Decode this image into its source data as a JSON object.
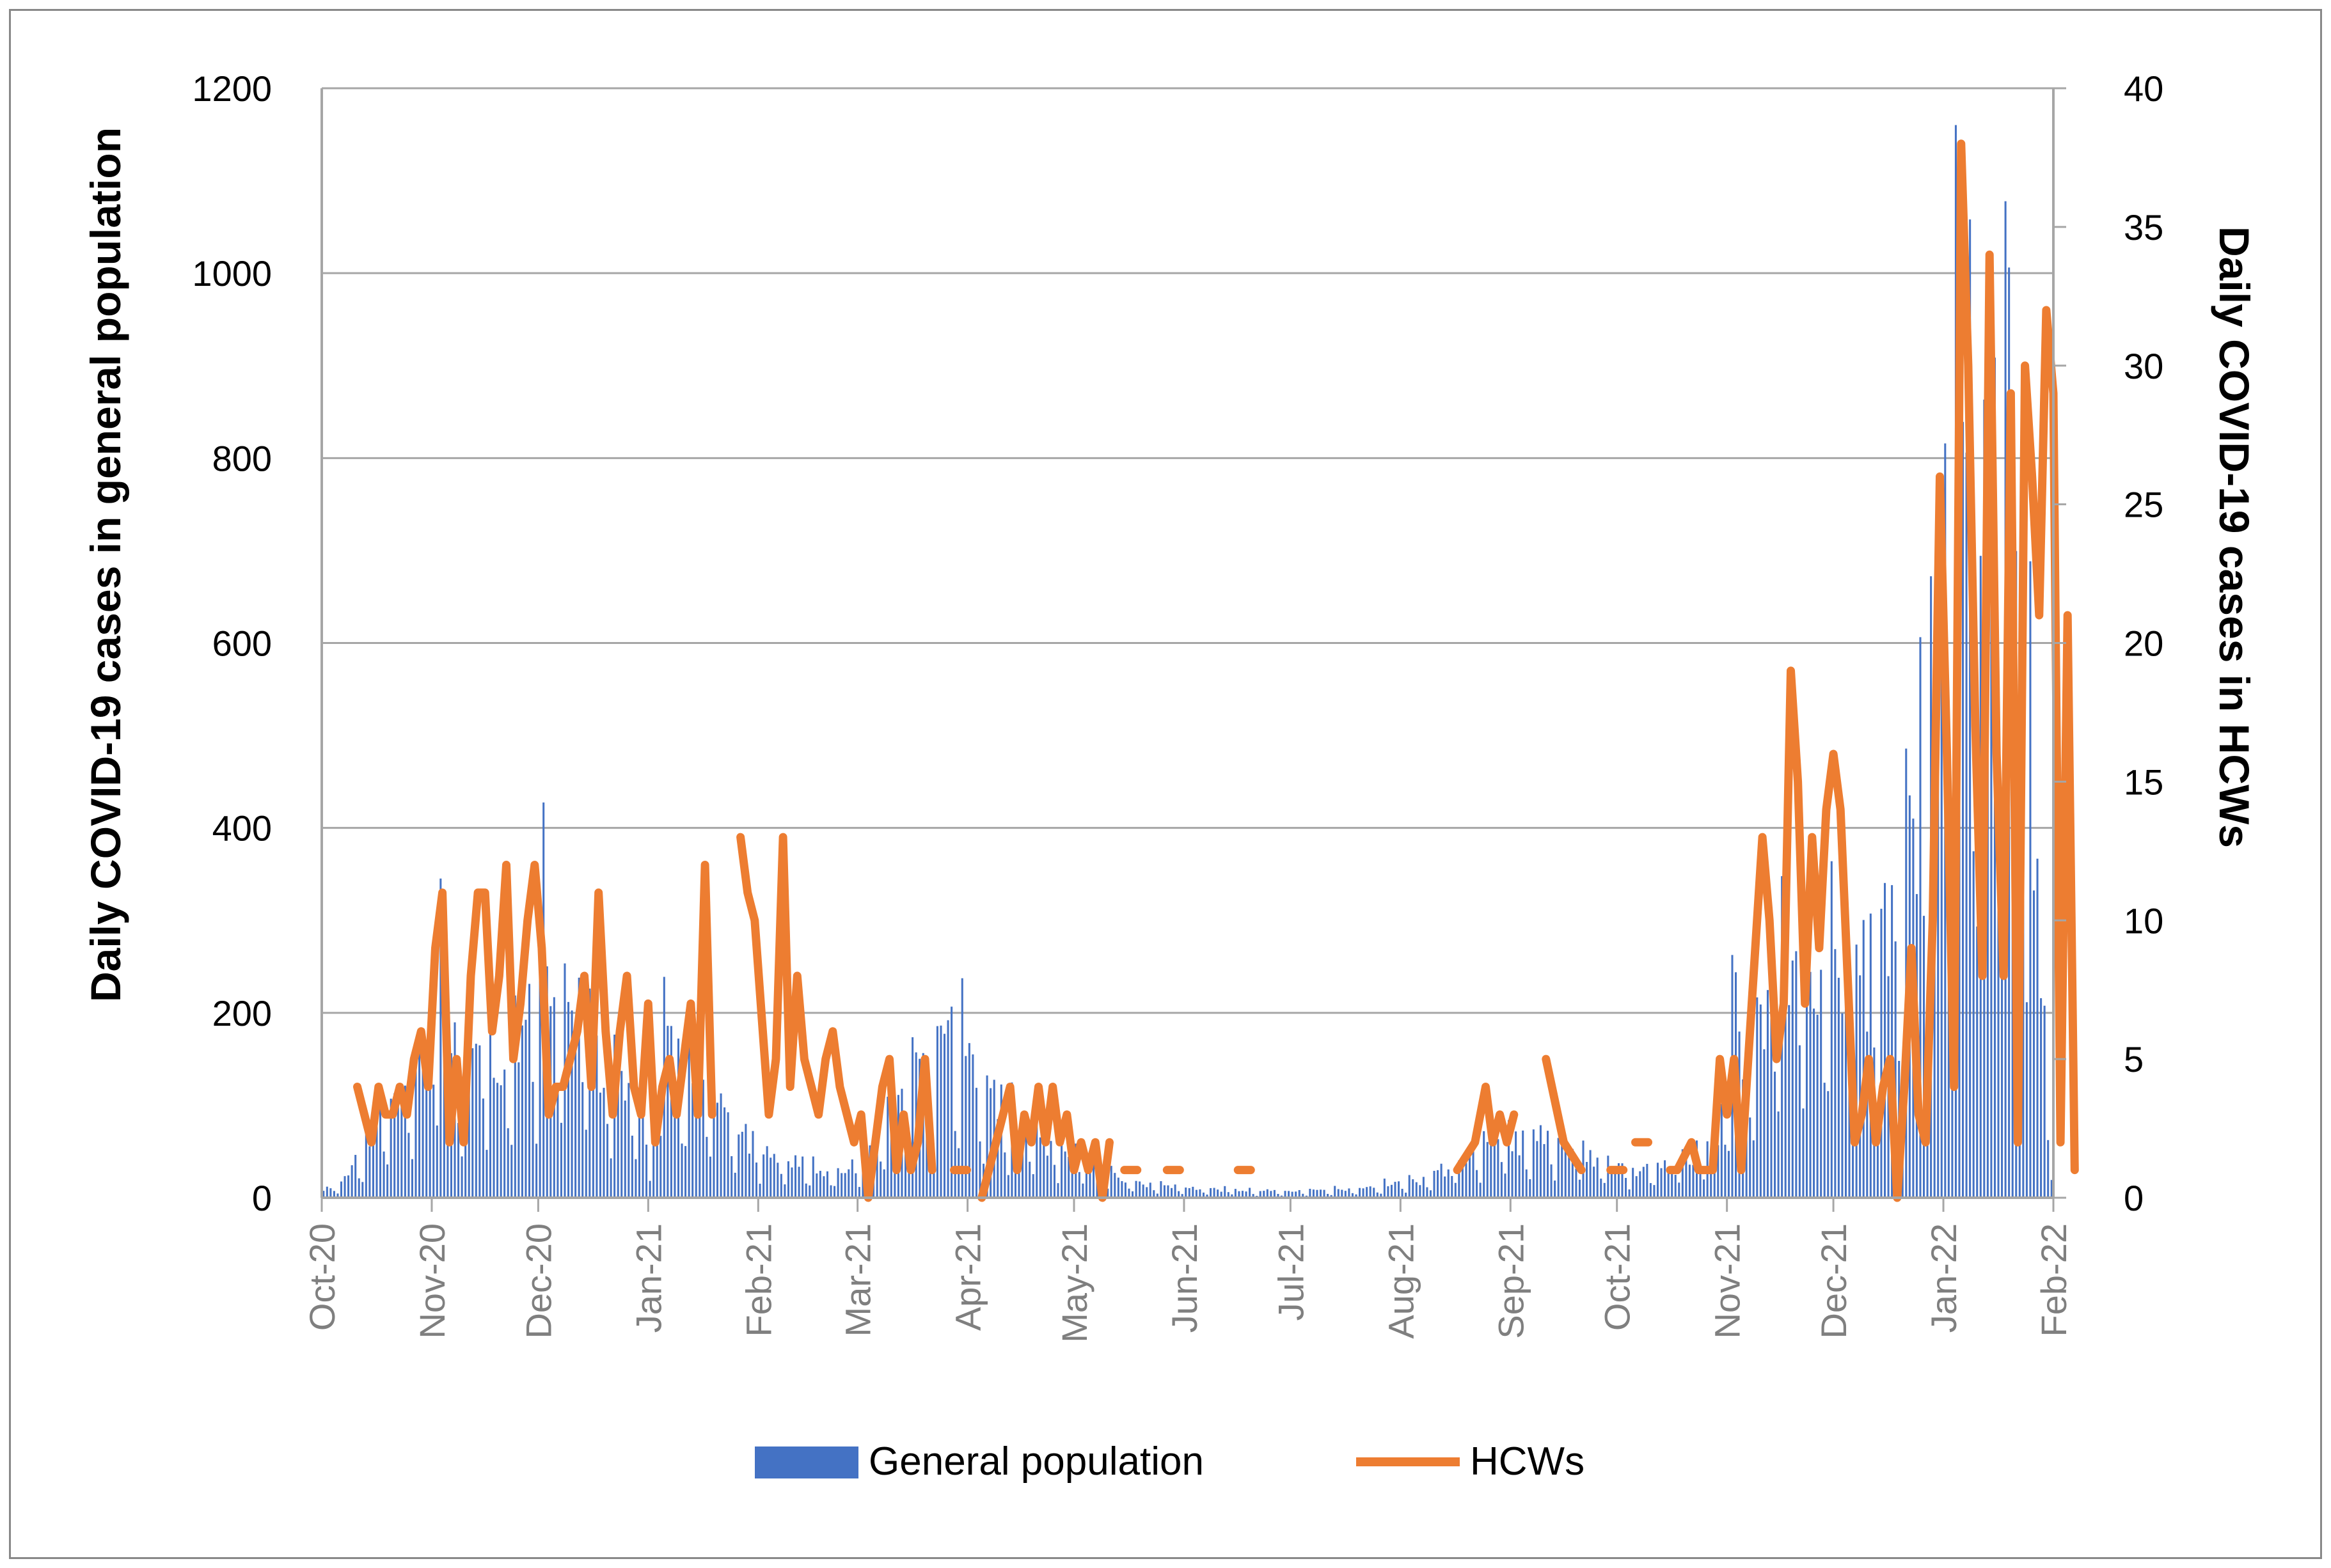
{
  "chart_data": {
    "type": "bar+line",
    "title": "",
    "x_axis": {
      "tick_labels": [
        "Oct-20",
        "Nov-20",
        "Dec-20",
        "Jan-21",
        "Feb-21",
        "Mar-21",
        "Apr-21",
        "May-21",
        "Jun-21",
        "Jul-21",
        "Aug-21",
        "Sep-21",
        "Oct-21",
        "Nov-21",
        "Dec-21",
        "Jan-22",
        "Feb-22"
      ],
      "range": [
        "2020-10-01",
        "2022-02-01"
      ]
    },
    "y_left": {
      "label": "Daily COVID-19 cases in general population",
      "range": [
        0,
        1200
      ],
      "ticks": [
        0,
        200,
        400,
        600,
        800,
        1000,
        1200
      ]
    },
    "y_right": {
      "label": "Daily COVID-19 cases in HCWs",
      "range": [
        0,
        40
      ],
      "ticks": [
        0,
        5,
        10,
        15,
        20,
        25,
        30,
        35,
        40
      ]
    },
    "grid": true,
    "legend": {
      "position": "bottom",
      "entries": [
        "General population",
        "HCWs"
      ]
    },
    "series": [
      {
        "name": "General population",
        "type": "bar",
        "axis": "left",
        "color": "#4472c4",
        "anchors": [
          [
            0,
            10
          ],
          [
            5,
            15
          ],
          [
            10,
            50
          ],
          [
            15,
            90
          ],
          [
            20,
            100
          ],
          [
            25,
            110
          ],
          [
            30,
            150
          ],
          [
            33,
            300
          ],
          [
            36,
            140
          ],
          [
            40,
            150
          ],
          [
            45,
            170
          ],
          [
            50,
            150
          ],
          [
            55,
            180
          ],
          [
            60,
            200
          ],
          [
            62,
            370
          ],
          [
            66,
            210
          ],
          [
            70,
            190
          ],
          [
            75,
            180
          ],
          [
            80,
            130
          ],
          [
            85,
            110
          ],
          [
            90,
            120
          ],
          [
            92,
            20
          ],
          [
            95,
            170
          ],
          [
            100,
            140
          ],
          [
            105,
            120
          ],
          [
            110,
            100
          ],
          [
            115,
            80
          ],
          [
            120,
            60
          ],
          [
            125,
            50
          ],
          [
            130,
            40
          ],
          [
            135,
            35
          ],
          [
            140,
            30
          ],
          [
            145,
            30
          ],
          [
            150,
            40
          ],
          [
            155,
            60
          ],
          [
            160,
            90
          ],
          [
            165,
            120
          ],
          [
            170,
            170
          ],
          [
            175,
            190
          ],
          [
            180,
            160
          ],
          [
            185,
            140
          ],
          [
            190,
            100
          ],
          [
            195,
            80
          ],
          [
            200,
            70
          ],
          [
            205,
            60
          ],
          [
            210,
            50
          ],
          [
            215,
            40
          ],
          [
            220,
            30
          ],
          [
            225,
            20
          ],
          [
            230,
            15
          ],
          [
            240,
            12
          ],
          [
            250,
            10
          ],
          [
            260,
            8
          ],
          [
            270,
            7
          ],
          [
            280,
            8
          ],
          [
            290,
            10
          ],
          [
            300,
            15
          ],
          [
            310,
            20
          ],
          [
            320,
            40
          ],
          [
            330,
            60
          ],
          [
            340,
            70
          ],
          [
            350,
            60
          ],
          [
            360,
            40
          ],
          [
            370,
            30
          ],
          [
            380,
            35
          ],
          [
            390,
            50
          ],
          [
            395,
            90
          ],
          [
            398,
            290
          ],
          [
            400,
            120
          ],
          [
            405,
            200
          ],
          [
            410,
            250
          ],
          [
            415,
            260
          ],
          [
            420,
            220
          ],
          [
            425,
            280
          ],
          [
            430,
            300
          ],
          [
            435,
            260
          ],
          [
            440,
            300
          ],
          [
            445,
            310
          ],
          [
            450,
            500
          ],
          [
            455,
            700
          ],
          [
            460,
            880
          ],
          [
            463,
            840
          ],
          [
            466,
            700
          ],
          [
            470,
            960
          ],
          [
            472,
            970
          ],
          [
            475,
            850
          ],
          [
            478,
            650
          ],
          [
            481,
            500
          ],
          [
            484,
            300
          ],
          [
            487,
            50
          ]
        ]
      },
      {
        "name": "HCWs",
        "type": "line",
        "axis": "right",
        "color": "#ed7d31",
        "anchors": [
          [
            10,
            4
          ],
          [
            12,
            3
          ],
          [
            14,
            2
          ],
          [
            16,
            4
          ],
          [
            18,
            3
          ],
          [
            20,
            3
          ],
          [
            22,
            4
          ],
          [
            24,
            3
          ],
          [
            26,
            5
          ],
          [
            28,
            6
          ],
          [
            30,
            4
          ],
          [
            32,
            9
          ],
          [
            34,
            11
          ],
          [
            36,
            2
          ],
          [
            38,
            5
          ],
          [
            40,
            2
          ],
          [
            42,
            8
          ],
          [
            44,
            11
          ],
          [
            46,
            11
          ],
          [
            48,
            6
          ],
          [
            50,
            8
          ],
          [
            52,
            12
          ],
          [
            54,
            5
          ],
          [
            56,
            7
          ],
          [
            58,
            10
          ],
          [
            60,
            12
          ],
          [
            62,
            9
          ],
          [
            64,
            3
          ],
          [
            66,
            4
          ],
          [
            68,
            4
          ],
          [
            70,
            5
          ],
          [
            72,
            6
          ],
          [
            74,
            8
          ],
          [
            76,
            4
          ],
          [
            78,
            11
          ],
          [
            80,
            6
          ],
          [
            82,
            3
          ],
          [
            84,
            6
          ],
          [
            86,
            8
          ],
          [
            88,
            4
          ],
          [
            90,
            3
          ],
          [
            92,
            7
          ],
          [
            94,
            2
          ],
          [
            96,
            4
          ],
          [
            98,
            5
          ],
          [
            100,
            3
          ],
          [
            102,
            5
          ],
          [
            104,
            7
          ],
          [
            106,
            3
          ],
          [
            108,
            12
          ],
          [
            110,
            3
          ],
          [
            118,
            13
          ],
          [
            120,
            11
          ],
          [
            122,
            10
          ],
          [
            126,
            3
          ],
          [
            128,
            5
          ],
          [
            130,
            13
          ],
          [
            132,
            4
          ],
          [
            134,
            8
          ],
          [
            136,
            5
          ],
          [
            138,
            4
          ],
          [
            140,
            3
          ],
          [
            142,
            5
          ],
          [
            144,
            6
          ],
          [
            146,
            4
          ],
          [
            148,
            3
          ],
          [
            150,
            2
          ],
          [
            152,
            3
          ],
          [
            154,
            0
          ],
          [
            156,
            2
          ],
          [
            158,
            4
          ],
          [
            160,
            5
          ],
          [
            162,
            1
          ],
          [
            164,
            3
          ],
          [
            166,
            1
          ],
          [
            168,
            2
          ],
          [
            170,
            5
          ],
          [
            172,
            1
          ],
          [
            180,
            1
          ],
          [
            186,
            0
          ],
          [
            190,
            2
          ],
          [
            194,
            4
          ],
          [
            196,
            1
          ],
          [
            198,
            3
          ],
          [
            200,
            2
          ],
          [
            202,
            4
          ],
          [
            204,
            2
          ],
          [
            206,
            4
          ],
          [
            208,
            2
          ],
          [
            210,
            3
          ],
          [
            212,
            1
          ],
          [
            214,
            2
          ],
          [
            216,
            1
          ],
          [
            218,
            2
          ],
          [
            220,
            0
          ],
          [
            222,
            2
          ],
          [
            228,
            1
          ],
          [
            240,
            1
          ],
          [
            260,
            1
          ],
          [
            320,
            1
          ],
          [
            325,
            2
          ],
          [
            328,
            4
          ],
          [
            330,
            2
          ],
          [
            332,
            3
          ],
          [
            334,
            2
          ],
          [
            336,
            3
          ],
          [
            345,
            5
          ],
          [
            350,
            2
          ],
          [
            355,
            1
          ],
          [
            365,
            1
          ],
          [
            372,
            2
          ],
          [
            380,
            1
          ],
          [
            382,
            1
          ],
          [
            386,
            2
          ],
          [
            388,
            1
          ],
          [
            392,
            1
          ],
          [
            394,
            5
          ],
          [
            396,
            3
          ],
          [
            398,
            5
          ],
          [
            400,
            1
          ],
          [
            404,
            9
          ],
          [
            406,
            13
          ],
          [
            408,
            10
          ],
          [
            410,
            5
          ],
          [
            412,
            7
          ],
          [
            414,
            19
          ],
          [
            416,
            15
          ],
          [
            418,
            7
          ],
          [
            420,
            13
          ],
          [
            422,
            9
          ],
          [
            424,
            14
          ],
          [
            426,
            16
          ],
          [
            428,
            14
          ],
          [
            430,
            8
          ],
          [
            432,
            2
          ],
          [
            434,
            3
          ],
          [
            436,
            5
          ],
          [
            438,
            2
          ],
          [
            440,
            4
          ],
          [
            442,
            5
          ],
          [
            444,
            0
          ],
          [
            446,
            4
          ],
          [
            448,
            9
          ],
          [
            450,
            3
          ],
          [
            452,
            2
          ],
          [
            454,
            10
          ],
          [
            456,
            26
          ],
          [
            458,
            16
          ],
          [
            460,
            4
          ],
          [
            462,
            38
          ],
          [
            464,
            30
          ],
          [
            466,
            17
          ],
          [
            468,
            8
          ],
          [
            470,
            34
          ],
          [
            472,
            16
          ],
          [
            474,
            8
          ],
          [
            476,
            29
          ],
          [
            478,
            2
          ],
          [
            480,
            30
          ],
          [
            482,
            26
          ],
          [
            484,
            21
          ],
          [
            486,
            32
          ],
          [
            488,
            29
          ],
          [
            490,
            2
          ],
          [
            492,
            21
          ],
          [
            494,
            1
          ]
        ]
      }
    ]
  }
}
